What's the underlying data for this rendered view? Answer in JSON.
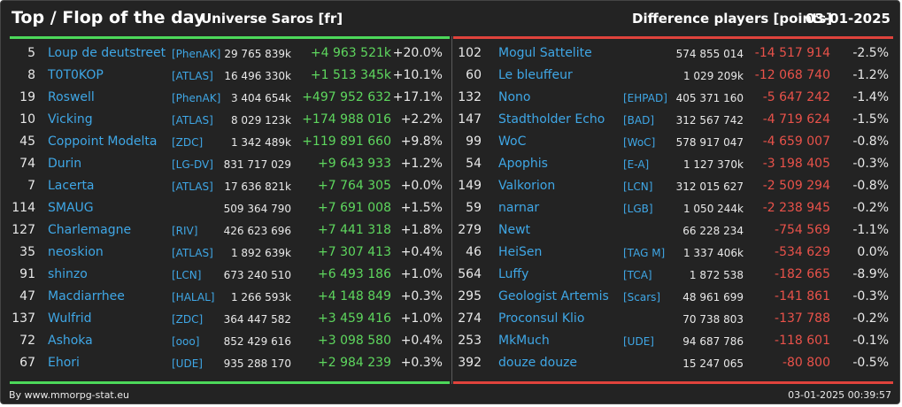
{
  "header": {
    "title": "Top / Flop of the day",
    "universe": "Universe Saros [fr]",
    "difference_label": "Difference players [points]",
    "date": "03-01-2025"
  },
  "colors": {
    "top": "#4cd85a",
    "flop": "#e0433c",
    "link": "#3fa7e6"
  },
  "top": [
    {
      "rank": "5",
      "name": "Loup de deutstreet",
      "tag": "[PhenAK]",
      "points": "29 765 839k",
      "diff": "+4 963 521k",
      "pct": "+20.0%"
    },
    {
      "rank": "8",
      "name": "T0T0KOP",
      "tag": "[ATLAS]",
      "points": "16 496 330k",
      "diff": "+1 513 345k",
      "pct": "+10.1%"
    },
    {
      "rank": "19",
      "name": "Roswell",
      "tag": "[PhenAK]",
      "points": "3 404 654k",
      "diff": "+497 952 632",
      "pct": "+17.1%"
    },
    {
      "rank": "10",
      "name": "Vicking",
      "tag": "[ATLAS]",
      "points": "8 029 123k",
      "diff": "+174 988 016",
      "pct": "+2.2%"
    },
    {
      "rank": "45",
      "name": "Coppoint Modelta",
      "tag": "[ZDC]",
      "points": "1 342 489k",
      "diff": "+119 891 660",
      "pct": "+9.8%"
    },
    {
      "rank": "74",
      "name": "Durin",
      "tag": "[LG-DV]",
      "points": "831 717 029",
      "diff": "+9 643 933",
      "pct": "+1.2%"
    },
    {
      "rank": "7",
      "name": "Lacerta",
      "tag": "[ATLAS]",
      "points": "17 636 821k",
      "diff": "+7 764 305",
      "pct": "+0.0%"
    },
    {
      "rank": "114",
      "name": "SMAUG",
      "tag": "",
      "points": "509 364 790",
      "diff": "+7 691 008",
      "pct": "+1.5%"
    },
    {
      "rank": "127",
      "name": "Charlemagne",
      "tag": "[RIV]",
      "points": "426 623 696",
      "diff": "+7 441 318",
      "pct": "+1.8%"
    },
    {
      "rank": "35",
      "name": "neoskion",
      "tag": "[ATLAS]",
      "points": "1 892 639k",
      "diff": "+7 307 413",
      "pct": "+0.4%"
    },
    {
      "rank": "91",
      "name": "shinzo",
      "tag": "[LCN]",
      "points": "673 240 510",
      "diff": "+6 493 186",
      "pct": "+1.0%"
    },
    {
      "rank": "47",
      "name": "Macdiarrhee",
      "tag": "[HALAL]",
      "points": "1 266 593k",
      "diff": "+4 148 849",
      "pct": "+0.3%"
    },
    {
      "rank": "137",
      "name": "Wulfrid",
      "tag": "[ZDC]",
      "points": "364 447 582",
      "diff": "+3 459 416",
      "pct": "+1.0%"
    },
    {
      "rank": "72",
      "name": "Ashoka",
      "tag": "[ooo]",
      "points": "852 429 616",
      "diff": "+3 098 580",
      "pct": "+0.4%"
    },
    {
      "rank": "67",
      "name": "Ehori",
      "tag": "[UDE]",
      "points": "935 288 170",
      "diff": "+2 984 239",
      "pct": "+0.3%"
    }
  ],
  "flop": [
    {
      "rank": "102",
      "name": "Mogul Sattelite",
      "tag": "",
      "points": "574 855 014",
      "diff": "-14 517 914",
      "pct": "-2.5%"
    },
    {
      "rank": "60",
      "name": "Le bleuffeur",
      "tag": "",
      "points": "1 029 209k",
      "diff": "-12 068 740",
      "pct": "-1.2%"
    },
    {
      "rank": "132",
      "name": "Nono",
      "tag": "[EHPAD]",
      "points": "405 371 160",
      "diff": "-5 647 242",
      "pct": "-1.4%"
    },
    {
      "rank": "147",
      "name": "Stadtholder Echo",
      "tag": "[BAD]",
      "points": "312 567 742",
      "diff": "-4 719 624",
      "pct": "-1.5%"
    },
    {
      "rank": "99",
      "name": "WoC",
      "tag": "[WoC]",
      "points": "578 917 047",
      "diff": "-4 659 007",
      "pct": "-0.8%"
    },
    {
      "rank": "54",
      "name": "Apophis",
      "tag": "[E-A]",
      "points": "1 127 370k",
      "diff": "-3 198 405",
      "pct": "-0.3%"
    },
    {
      "rank": "149",
      "name": "Valkorion",
      "tag": "[LCN]",
      "points": "312 015 627",
      "diff": "-2 509 294",
      "pct": "-0.8%"
    },
    {
      "rank": "59",
      "name": "narnar",
      "tag": "[LGB]",
      "points": "1 050 244k",
      "diff": "-2 238 945",
      "pct": "-0.2%"
    },
    {
      "rank": "279",
      "name": "Newt",
      "tag": "",
      "points": "66 228 234",
      "diff": "-754 569",
      "pct": "-1.1%"
    },
    {
      "rank": "46",
      "name": "HeiSen",
      "tag": "[TAG M]",
      "points": "1 337 406k",
      "diff": "-534 629",
      "pct": "0.0%"
    },
    {
      "rank": "564",
      "name": "Luffy",
      "tag": "[TCA]",
      "points": "1 872 538",
      "diff": "-182 665",
      "pct": "-8.9%"
    },
    {
      "rank": "295",
      "name": "Geologist Artemis",
      "tag": "[Scars]",
      "points": "48 961 699",
      "diff": "-141 861",
      "pct": "-0.3%"
    },
    {
      "rank": "274",
      "name": "Proconsul Klio",
      "tag": "",
      "points": "70 738 803",
      "diff": "-137 788",
      "pct": "-0.2%"
    },
    {
      "rank": "253",
      "name": "MkMuch",
      "tag": "[UDE]",
      "points": "94 687 786",
      "diff": "-118 601",
      "pct": "-0.1%"
    },
    {
      "rank": "392",
      "name": "douze douze",
      "tag": "",
      "points": "15 247 065",
      "diff": "-80 800",
      "pct": "-0.5%"
    }
  ],
  "footer": {
    "source": "By www.mmorpg-stat.eu",
    "timestamp": "03-01-2025 00:39:57"
  }
}
